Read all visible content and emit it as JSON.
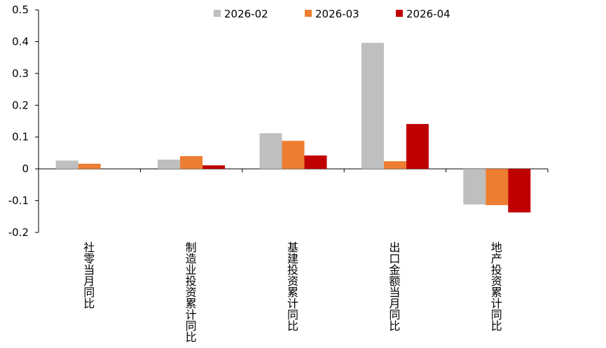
{
  "chart_data": {
    "type": "bar",
    "categories": [
      "社零当月同比",
      "制造业投资累计同比",
      "基建投资累计同比",
      "出口金额当月同比",
      "地产投资累计同比"
    ],
    "series": [
      {
        "name": "2026-02",
        "color": "#bfbfbf",
        "values": [
          0.026,
          0.029,
          0.112,
          0.396,
          -0.112
        ]
      },
      {
        "name": "2026-03",
        "color": "#ed7d31",
        "values": [
          0.016,
          0.04,
          0.088,
          0.024,
          -0.114
        ]
      },
      {
        "name": "2026-04",
        "color": "#c00000",
        "values": [
          null,
          0.011,
          0.042,
          0.141,
          -0.137
        ]
      }
    ],
    "ylim": [
      -0.2,
      0.5
    ],
    "yticks": [
      -0.2,
      -0.1,
      0,
      0.1,
      0.2,
      0.3,
      0.4,
      0.5
    ],
    "legend": "top"
  }
}
